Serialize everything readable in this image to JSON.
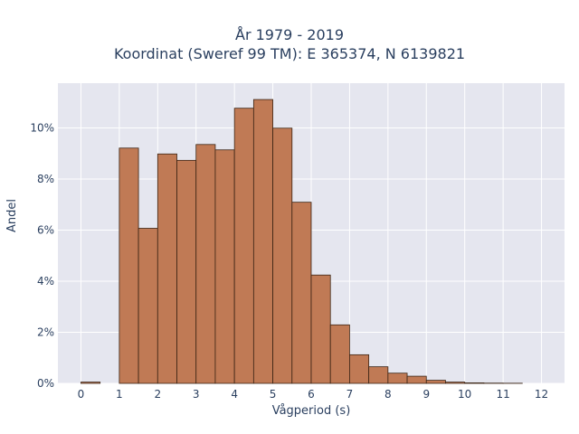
{
  "chart_data": {
    "type": "bar",
    "title_lines": [
      "År 1979 - 2019",
      "Koordinat (Sweref 99 TM): E 365374, N 6139821"
    ],
    "xlabel": "Vågperiod (s)",
    "ylabel": "Andel",
    "x_ticks": [
      "0",
      "1",
      "2",
      "3",
      "4",
      "5",
      "6",
      "7",
      "8",
      "9",
      "10",
      "11",
      "12"
    ],
    "y_ticks": [
      "0%",
      "2%",
      "4%",
      "6%",
      "8%",
      "10%"
    ],
    "xlim": [
      -0.6,
      12.6
    ],
    "ylim": [
      0,
      0.1175
    ],
    "bin_width": 0.5,
    "bins": [
      {
        "x0": 0.0,
        "value": 0.0005
      },
      {
        "x0": 1.0,
        "value": 0.0921
      },
      {
        "x0": 1.5,
        "value": 0.0607
      },
      {
        "x0": 2.0,
        "value": 0.0898
      },
      {
        "x0": 2.5,
        "value": 0.0873
      },
      {
        "x0": 3.0,
        "value": 0.0935
      },
      {
        "x0": 3.5,
        "value": 0.0914
      },
      {
        "x0": 4.0,
        "value": 0.1077
      },
      {
        "x0": 4.5,
        "value": 0.1111
      },
      {
        "x0": 5.0,
        "value": 0.0999
      },
      {
        "x0": 5.5,
        "value": 0.0709
      },
      {
        "x0": 6.0,
        "value": 0.0424
      },
      {
        "x0": 6.5,
        "value": 0.0229
      },
      {
        "x0": 7.0,
        "value": 0.0112
      },
      {
        "x0": 7.5,
        "value": 0.0065
      },
      {
        "x0": 8.0,
        "value": 0.004
      },
      {
        "x0": 8.5,
        "value": 0.0028
      },
      {
        "x0": 9.0,
        "value": 0.0012
      },
      {
        "x0": 9.5,
        "value": 0.0005
      },
      {
        "x0": 10.0,
        "value": 0.0002
      },
      {
        "x0": 10.5,
        "value": 0.0001
      },
      {
        "x0": 11.0,
        "value": 5e-05
      }
    ],
    "bar_color": "#c07a55",
    "bar_edge_color": "#3b2414",
    "plot_background": "#e5e6ef",
    "grid": true,
    "legend": "none"
  }
}
